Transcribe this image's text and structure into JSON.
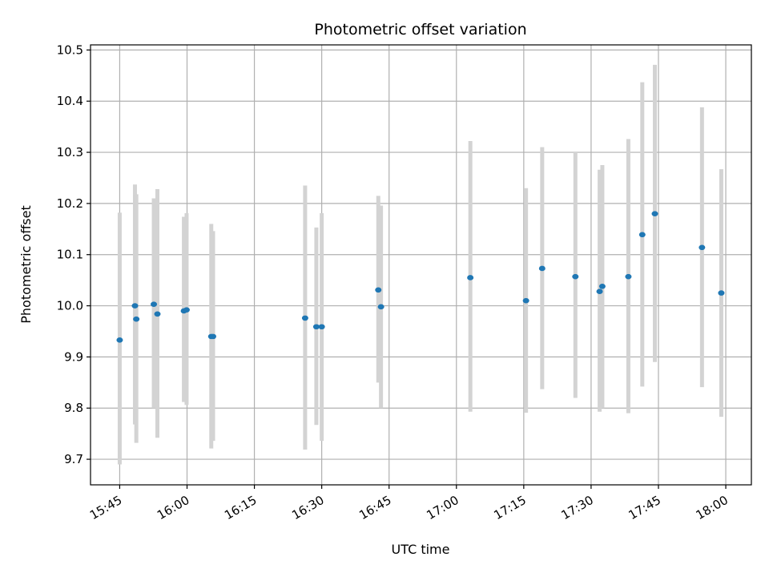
{
  "chart_data": {
    "type": "scatter",
    "title": "Photometric offset variation",
    "xlabel": "UTC time",
    "ylabel": "Photometric offset",
    "x_unit": "HH:MM",
    "xlim": [
      "15:38.5",
      "18:05.7"
    ],
    "ylim": [
      9.65,
      10.51
    ],
    "xticks": [
      "15:45",
      "16:00",
      "16:15",
      "16:30",
      "16:45",
      "17:00",
      "17:15",
      "17:30",
      "17:45",
      "18:00"
    ],
    "yticks": [
      9.7,
      9.8,
      9.9,
      10.0,
      10.1,
      10.2,
      10.3,
      10.4,
      10.5
    ],
    "ytick_labels": [
      "9.7",
      "9.8",
      "9.9",
      "10.0",
      "10.1",
      "10.2",
      "10.3",
      "10.4",
      "10.5"
    ],
    "grid": true,
    "errorbar_color": "#d3d3d3",
    "marker_color": "#1f77b4",
    "points": [
      {
        "x": "15:45.0",
        "y": 9.933,
        "ylow": 9.69,
        "yhigh": 10.182
      },
      {
        "x": "15:48.4",
        "y": 10.0,
        "ylow": 9.768,
        "yhigh": 10.237
      },
      {
        "x": "15:48.7",
        "y": 9.974,
        "ylow": 9.732,
        "yhigh": 10.218
      },
      {
        "x": "15:52.6",
        "y": 10.003,
        "ylow": 9.8,
        "yhigh": 10.21
      },
      {
        "x": "15:53.4",
        "y": 9.984,
        "ylow": 9.742,
        "yhigh": 10.228
      },
      {
        "x": "15:59.3",
        "y": 9.99,
        "ylow": 9.812,
        "yhigh": 10.174
      },
      {
        "x": "15:59.9",
        "y": 9.992,
        "ylow": 9.806,
        "yhigh": 10.181
      },
      {
        "x": "16:05.4",
        "y": 9.94,
        "ylow": 9.721,
        "yhigh": 10.16
      },
      {
        "x": "16:05.8",
        "y": 9.94,
        "ylow": 9.736,
        "yhigh": 10.146
      },
      {
        "x": "16:26.3",
        "y": 9.976,
        "ylow": 9.719,
        "yhigh": 10.235
      },
      {
        "x": "16:28.8",
        "y": 9.959,
        "ylow": 9.767,
        "yhigh": 10.153
      },
      {
        "x": "16:30.0",
        "y": 9.959,
        "ylow": 9.736,
        "yhigh": 10.181
      },
      {
        "x": "16:42.6",
        "y": 10.031,
        "ylow": 9.85,
        "yhigh": 10.215
      },
      {
        "x": "16:43.2",
        "y": 9.998,
        "ylow": 9.8,
        "yhigh": 10.196
      },
      {
        "x": "17:03.1",
        "y": 10.055,
        "ylow": 9.793,
        "yhigh": 10.322
      },
      {
        "x": "17:15.5",
        "y": 10.01,
        "ylow": 9.791,
        "yhigh": 10.23
      },
      {
        "x": "17:19.1",
        "y": 10.073,
        "ylow": 9.837,
        "yhigh": 10.31
      },
      {
        "x": "17:26.5",
        "y": 10.057,
        "ylow": 9.82,
        "yhigh": 10.3
      },
      {
        "x": "17:31.9",
        "y": 10.028,
        "ylow": 9.793,
        "yhigh": 10.266
      },
      {
        "x": "17:32.5",
        "y": 10.038,
        "ylow": 9.8,
        "yhigh": 10.275
      },
      {
        "x": "17:38.3",
        "y": 10.057,
        "ylow": 9.79,
        "yhigh": 10.326
      },
      {
        "x": "17:41.4",
        "y": 10.139,
        "ylow": 9.842,
        "yhigh": 10.437
      },
      {
        "x": "17:44.2",
        "y": 10.18,
        "ylow": 9.89,
        "yhigh": 10.471
      },
      {
        "x": "17:54.7",
        "y": 10.114,
        "ylow": 9.841,
        "yhigh": 10.388
      },
      {
        "x": "17:59.0",
        "y": 10.025,
        "ylow": 9.783,
        "yhigh": 10.267
      }
    ]
  }
}
